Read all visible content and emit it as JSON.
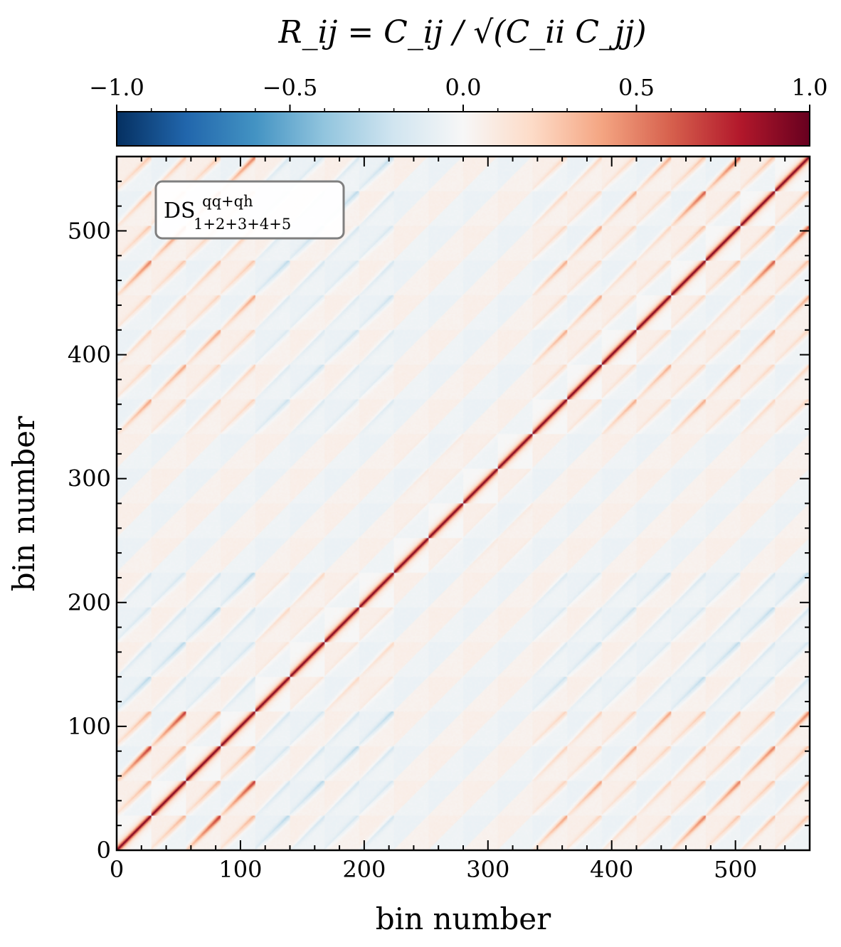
{
  "chart_data": {
    "type": "heatmap",
    "title": "R_ij = C_ij / √(C_ii C_jj)",
    "xlabel": "bin number",
    "ylabel": "bin number",
    "xlim": [
      0,
      560
    ],
    "ylim": [
      0,
      560
    ],
    "x_ticks": [
      "0",
      "100",
      "200",
      "300",
      "400",
      "500"
    ],
    "y_ticks": [
      "0",
      "100",
      "200",
      "300",
      "400",
      "500"
    ],
    "colorbar": {
      "label": "R_ij = C_ij / √(C_ii C_jj)",
      "range": [
        -1.0,
        1.0
      ],
      "ticks": [
        "−1.0",
        "−0.5",
        "0.0",
        "0.5",
        "1.0"
      ],
      "colormap": "RdBu_r",
      "position": "top"
    },
    "legend": {
      "text_main": "DS",
      "text_sup": "qq+qh",
      "text_sub": "1+2+3+4+5",
      "placement": "top-left"
    },
    "block_size": 28,
    "blocks": 20,
    "block_layout": "5 density splits × 4 multipoles/statistics, correlated diagonal bands within each block",
    "colors": {
      "negative": "#053061",
      "neutral": "#f7f7f7",
      "positive": "#67001f"
    }
  }
}
